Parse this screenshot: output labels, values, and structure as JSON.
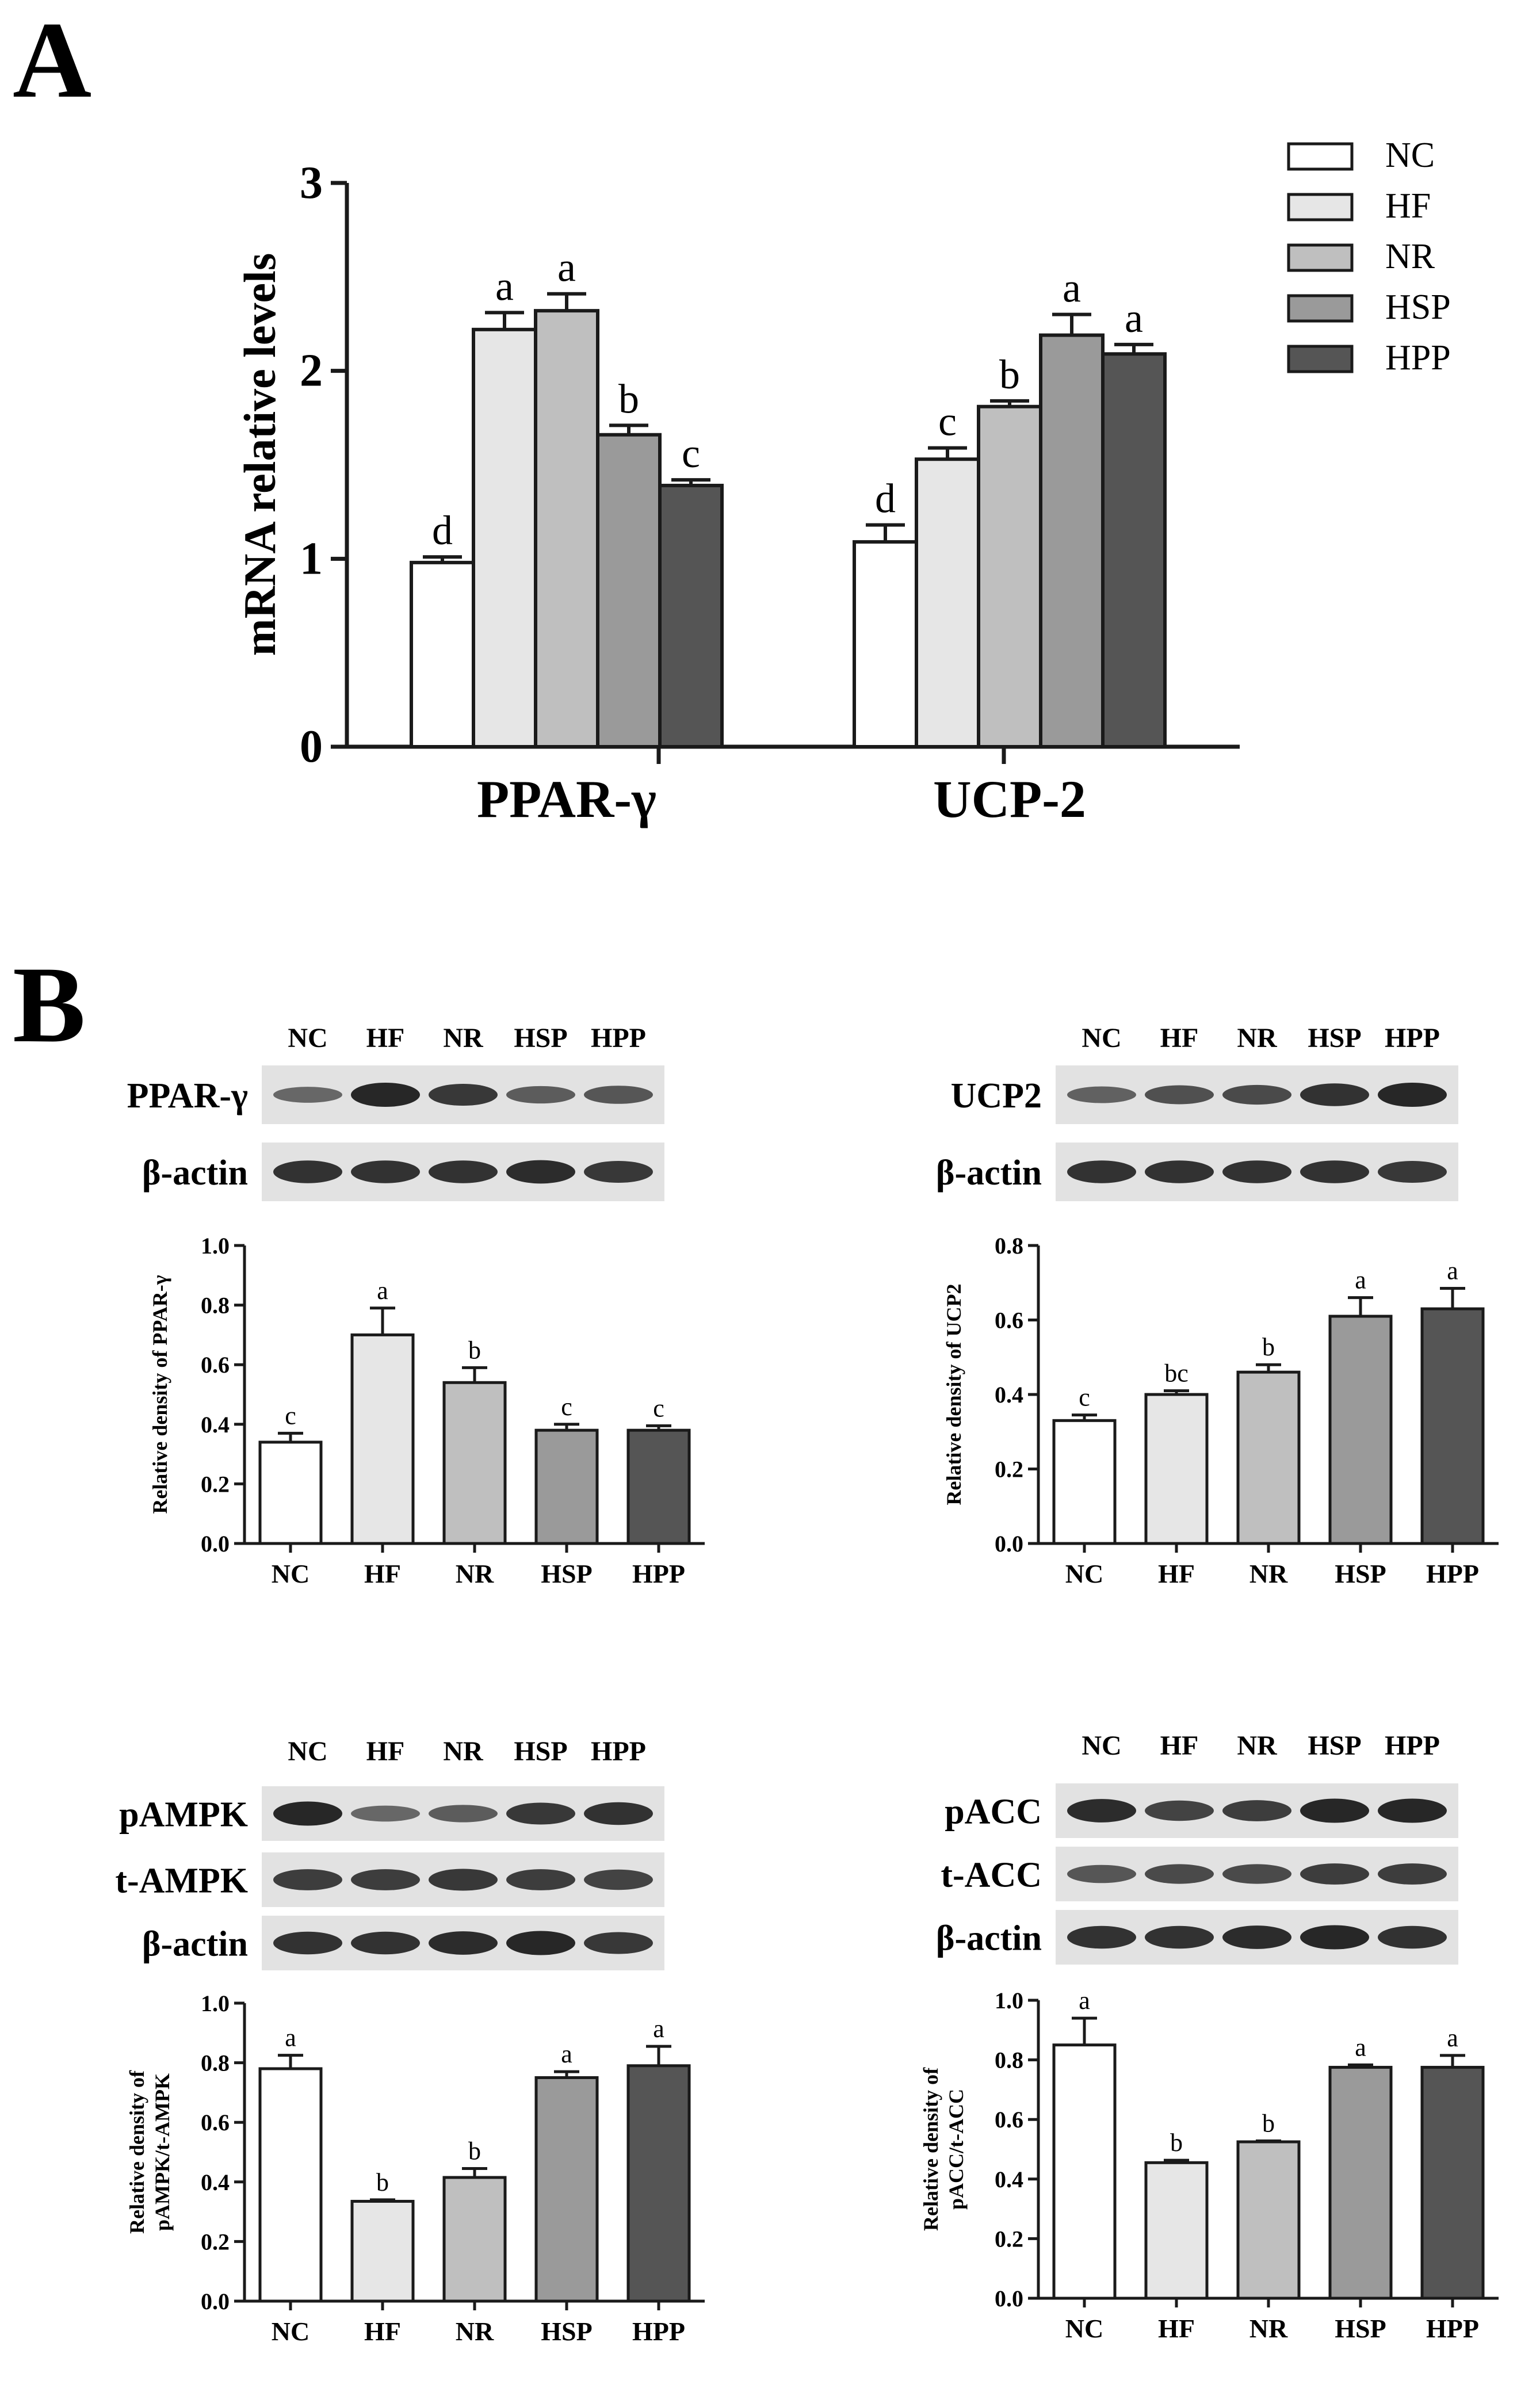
{
  "panel_a": {
    "letter": "A"
  },
  "panel_b": {
    "letter": "B"
  },
  "colors": {
    "NC": "#ffffff",
    "HF": "#e6e6e6",
    "NR": "#bfbfbf",
    "HSP": "#9a9a9a",
    "HPP": "#555555",
    "axis": "#1a1a1a",
    "blot_bg": "#e2e2e2",
    "band": "#1c1c1c"
  },
  "chart_data": [
    {
      "id": "mrna",
      "type": "bar",
      "title": "",
      "xlabel": "",
      "ylabel": "mRNA relative levels",
      "ylim": [
        0,
        3
      ],
      "yticks": [
        "0",
        "1",
        "2",
        "3"
      ],
      "categories": [
        "PPAR-γ",
        "UCP-2"
      ],
      "legend_position": "top-right",
      "series": [
        {
          "name": "NC",
          "values": [
            0.98,
            1.09
          ],
          "errors": [
            0.03,
            0.09
          ],
          "letters": [
            "d",
            "d"
          ]
        },
        {
          "name": "HF",
          "values": [
            2.22,
            1.53
          ],
          "errors": [
            0.09,
            0.06
          ],
          "letters": [
            "a",
            "c"
          ]
        },
        {
          "name": "NR",
          "values": [
            2.32,
            1.81
          ],
          "errors": [
            0.09,
            0.03
          ],
          "letters": [
            "a",
            "b"
          ]
        },
        {
          "name": "HSP",
          "values": [
            1.66,
            2.19
          ],
          "errors": [
            0.05,
            0.11
          ],
          "letters": [
            "b",
            "a"
          ]
        },
        {
          "name": "HPP",
          "values": [
            1.39,
            2.09
          ],
          "errors": [
            0.03,
            0.05
          ],
          "letters": [
            "c",
            "a"
          ]
        }
      ]
    },
    {
      "id": "ppar",
      "type": "bar",
      "ylabel": "Relative density of PPAR-γ",
      "ylim": [
        0,
        1.0
      ],
      "yticks": [
        "0.0",
        "0.2",
        "0.4",
        "0.6",
        "0.8",
        "1.0"
      ],
      "categories": [
        "NC",
        "HF",
        "NR",
        "HSP",
        "HPP"
      ],
      "values": [
        0.34,
        0.7,
        0.54,
        0.38,
        0.38
      ],
      "errors": [
        0.03,
        0.09,
        0.05,
        0.02,
        0.015
      ],
      "letters": [
        "c",
        "a",
        "b",
        "c",
        "c"
      ]
    },
    {
      "id": "ucp2",
      "type": "bar",
      "ylabel": "Relative density of UCP2",
      "ylim": [
        0,
        0.8
      ],
      "yticks": [
        "0.0",
        "0.2",
        "0.4",
        "0.6",
        "0.8"
      ],
      "categories": [
        "NC",
        "HF",
        "NR",
        "HSP",
        "HPP"
      ],
      "values": [
        0.33,
        0.4,
        0.46,
        0.61,
        0.63
      ],
      "errors": [
        0.015,
        0.01,
        0.02,
        0.05,
        0.055
      ],
      "letters": [
        "c",
        "bc",
        "b",
        "a",
        "a"
      ]
    },
    {
      "id": "ampk",
      "type": "bar",
      "ylabel_lines": [
        "Relative density of",
        "pAMPK/t-AMPK"
      ],
      "ylim": [
        0,
        1.0
      ],
      "yticks": [
        "0.0",
        "0.2",
        "0.4",
        "0.6",
        "0.8",
        "1.0"
      ],
      "categories": [
        "NC",
        "HF",
        "NR",
        "HSP",
        "HPP"
      ],
      "values": [
        0.78,
        0.335,
        0.415,
        0.75,
        0.79
      ],
      "errors": [
        0.045,
        0.005,
        0.03,
        0.02,
        0.065
      ],
      "letters": [
        "a",
        "b",
        "b",
        "a",
        "a"
      ]
    },
    {
      "id": "acc",
      "type": "bar",
      "ylabel_lines": [
        "Relative density of",
        "pACC/t-ACC"
      ],
      "ylim": [
        0,
        1.0
      ],
      "yticks": [
        "0.0",
        "0.2",
        "0.4",
        "0.6",
        "0.8",
        "1.0"
      ],
      "categories": [
        "NC",
        "HF",
        "NR",
        "HSP",
        "HPP"
      ],
      "values": [
        0.85,
        0.455,
        0.525,
        0.775,
        0.775
      ],
      "errors": [
        0.09,
        0.008,
        0.003,
        0.008,
        0.04
      ],
      "letters": [
        "a",
        "b",
        "b",
        "a",
        "a"
      ]
    }
  ],
  "blots": [
    {
      "id": "blot_ppar",
      "lanes": [
        "NC",
        "HF",
        "NR",
        "HSP",
        "HPP"
      ],
      "rows": [
        {
          "label": "PPAR-γ",
          "intensity": [
            0.45,
            1.0,
            0.85,
            0.55,
            0.6
          ]
        },
        {
          "label": "β-actin",
          "intensity": [
            0.9,
            0.9,
            0.9,
            0.95,
            0.85
          ]
        }
      ]
    },
    {
      "id": "blot_ucp2",
      "lanes": [
        "NC",
        "HF",
        "NR",
        "HSP",
        "HPP"
      ],
      "rows": [
        {
          "label": "UCP2",
          "intensity": [
            0.5,
            0.65,
            0.7,
            0.9,
            1.0
          ]
        },
        {
          "label": "β-actin",
          "intensity": [
            0.9,
            0.9,
            0.9,
            0.9,
            0.85
          ]
        }
      ]
    },
    {
      "id": "blot_ampk",
      "lanes": [
        "NC",
        "HF",
        "NR",
        "HSP",
        "HPP"
      ],
      "rows": [
        {
          "label": "pAMPK",
          "intensity": [
            1.0,
            0.45,
            0.55,
            0.85,
            0.9
          ]
        },
        {
          "label": "t-AMPK",
          "intensity": [
            0.8,
            0.8,
            0.85,
            0.8,
            0.75
          ]
        },
        {
          "label": "β-actin",
          "intensity": [
            0.9,
            0.9,
            0.95,
            1.0,
            0.85
          ]
        }
      ]
    },
    {
      "id": "blot_acc",
      "lanes": [
        "NC",
        "HF",
        "NR",
        "HSP",
        "HPP"
      ],
      "rows": [
        {
          "label": "pACC",
          "intensity": [
            0.95,
            0.75,
            0.8,
            1.0,
            1.0
          ]
        },
        {
          "label": "t-ACC",
          "intensity": [
            0.6,
            0.7,
            0.7,
            0.8,
            0.8
          ]
        },
        {
          "label": "β-actin",
          "intensity": [
            0.9,
            0.9,
            0.95,
            1.0,
            0.9
          ]
        }
      ]
    }
  ]
}
